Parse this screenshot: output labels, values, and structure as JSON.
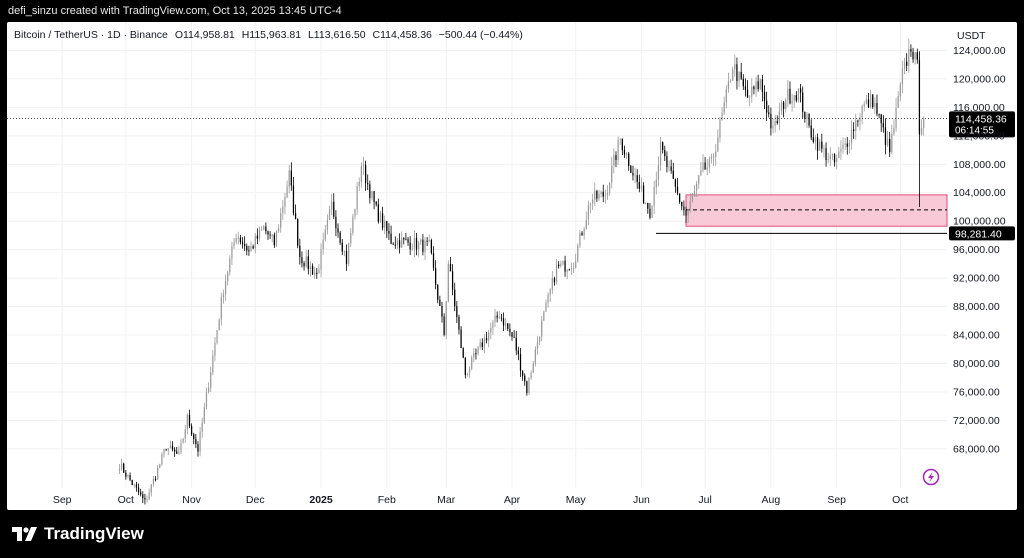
{
  "header": {
    "caption": "defi_sinzu created with TradingView.com, Oct 13, 2025 13:45 UTC-4"
  },
  "footer": {
    "brand": "TradingView",
    "logo_icon": "tradingview-logo-icon"
  },
  "colors": {
    "bull": "#9b9b9b",
    "bear": "#000000",
    "zone_fill": "#f8c9d6",
    "zone_stroke": "#e0245e",
    "grid": "#f1f1f1",
    "axis_text": "#131722",
    "flash_icon": "#9c27b0"
  },
  "chart_data": {
    "type": "candlestick",
    "title": "Bitcoin / TetherUS · 1D · Binance",
    "ohlc_labels": {
      "o": "O114,958.81",
      "h": "H115,963.81",
      "l": "L113,616.50",
      "c": "C114,458.36",
      "chg": "−500.44 (−0.44%)"
    },
    "currency": "USDT",
    "ylim": [
      62500,
      128000
    ],
    "y_ticks": [
      "68,000.00",
      "72,000.00",
      "76,000.00",
      "80,000.00",
      "84,000.00",
      "88,000.00",
      "92,000.00",
      "96,000.00",
      "100,000.00",
      "104,000.00",
      "108,000.00",
      "112,000.00",
      "116,000.00",
      "120,000.00",
      "124,000.00"
    ],
    "y_tick_values": [
      68000,
      72000,
      76000,
      80000,
      84000,
      88000,
      92000,
      96000,
      100000,
      104000,
      108000,
      112000,
      116000,
      120000,
      124000
    ],
    "x_ticks": [
      "Sep",
      "Oct",
      "Nov",
      "Dec",
      "2025",
      "Feb",
      "Mar",
      "Apr",
      "May",
      "Jun",
      "Jul",
      "Aug",
      "Sep",
      "Oct"
    ],
    "x_tick_dates": [
      "2024-09-01",
      "2024-10-01",
      "2024-11-01",
      "2024-12-01",
      "2025-01-01",
      "2025-02-01",
      "2025-03-01",
      "2025-04-01",
      "2025-05-01",
      "2025-06-01",
      "2025-07-01",
      "2025-08-01",
      "2025-09-01",
      "2025-10-01"
    ],
    "x_range": [
      "2024-08-06",
      "2025-10-23"
    ],
    "last_price": {
      "value": 114458.36,
      "label": "114,458.36",
      "countdown": "06:14:55"
    },
    "support_line": {
      "value": 98281.4,
      "label": "98,281.40",
      "from": "2025-06-22",
      "to": "2025-10-23"
    },
    "zone": {
      "top": 103700,
      "bottom": 99300,
      "mid": 101600,
      "from": "2025-06-22",
      "to": "2025-10-23"
    },
    "wick_low": {
      "date": "2025-10-10",
      "value": 102000
    },
    "close_path": [
      [
        "2024-09-28",
        65800
      ],
      [
        "2024-10-05",
        62700
      ],
      [
        "2024-10-10",
        60500
      ],
      [
        "2024-10-14",
        63500
      ],
      [
        "2024-10-20",
        68300
      ],
      [
        "2024-10-26",
        67000
      ],
      [
        "2024-10-30",
        72300
      ],
      [
        "2024-11-04",
        67900
      ],
      [
        "2024-11-11",
        81000
      ],
      [
        "2024-11-16",
        90500
      ],
      [
        "2024-11-22",
        98300
      ],
      [
        "2024-11-28",
        95800
      ],
      [
        "2024-12-05",
        99000
      ],
      [
        "2024-12-10",
        96800
      ],
      [
        "2024-12-17",
        106500
      ],
      [
        "2024-12-22",
        95100
      ],
      [
        "2024-12-30",
        92500
      ],
      [
        "2025-01-06",
        102200
      ],
      [
        "2025-01-13",
        94500
      ],
      [
        "2025-01-20",
        108000
      ],
      [
        "2025-01-27",
        101500
      ],
      [
        "2025-02-03",
        97300
      ],
      [
        "2025-02-11",
        97000
      ],
      [
        "2025-02-21",
        96400
      ],
      [
        "2025-02-28",
        84200
      ],
      [
        "2025-03-02",
        94200
      ],
      [
        "2025-03-10",
        78500
      ],
      [
        "2025-03-18",
        82800
      ],
      [
        "2025-03-26",
        87000
      ],
      [
        "2025-04-02",
        83200
      ],
      [
        "2025-04-08",
        76300
      ],
      [
        "2025-04-14",
        84500
      ],
      [
        "2025-04-22",
        93400
      ],
      [
        "2025-04-30",
        94200
      ],
      [
        "2025-05-08",
        103000
      ],
      [
        "2025-05-15",
        103800
      ],
      [
        "2025-05-22",
        111600
      ],
      [
        "2025-05-31",
        104600
      ],
      [
        "2025-06-05",
        101500
      ],
      [
        "2025-06-10",
        110200
      ],
      [
        "2025-06-17",
        104500
      ],
      [
        "2025-06-22",
        100800
      ],
      [
        "2025-06-30",
        107200
      ],
      [
        "2025-07-04",
        108000
      ],
      [
        "2025-07-11",
        117500
      ],
      [
        "2025-07-14",
        122000
      ],
      [
        "2025-07-21",
        117300
      ],
      [
        "2025-07-27",
        119500
      ],
      [
        "2025-08-02",
        112500
      ],
      [
        "2025-08-08",
        117500
      ],
      [
        "2025-08-14",
        118200
      ],
      [
        "2025-08-19",
        113000
      ],
      [
        "2025-08-25",
        110000
      ],
      [
        "2025-08-31",
        108200
      ],
      [
        "2025-09-05",
        110700
      ],
      [
        "2025-09-13",
        115900
      ],
      [
        "2025-09-18",
        117100
      ],
      [
        "2025-09-23",
        112500
      ],
      [
        "2025-09-26",
        109700
      ],
      [
        "2025-10-02",
        120500
      ],
      [
        "2025-10-06",
        124700
      ],
      [
        "2025-10-09",
        121600
      ],
      [
        "2025-10-10",
        113200
      ],
      [
        "2025-10-12",
        114958
      ]
    ]
  }
}
